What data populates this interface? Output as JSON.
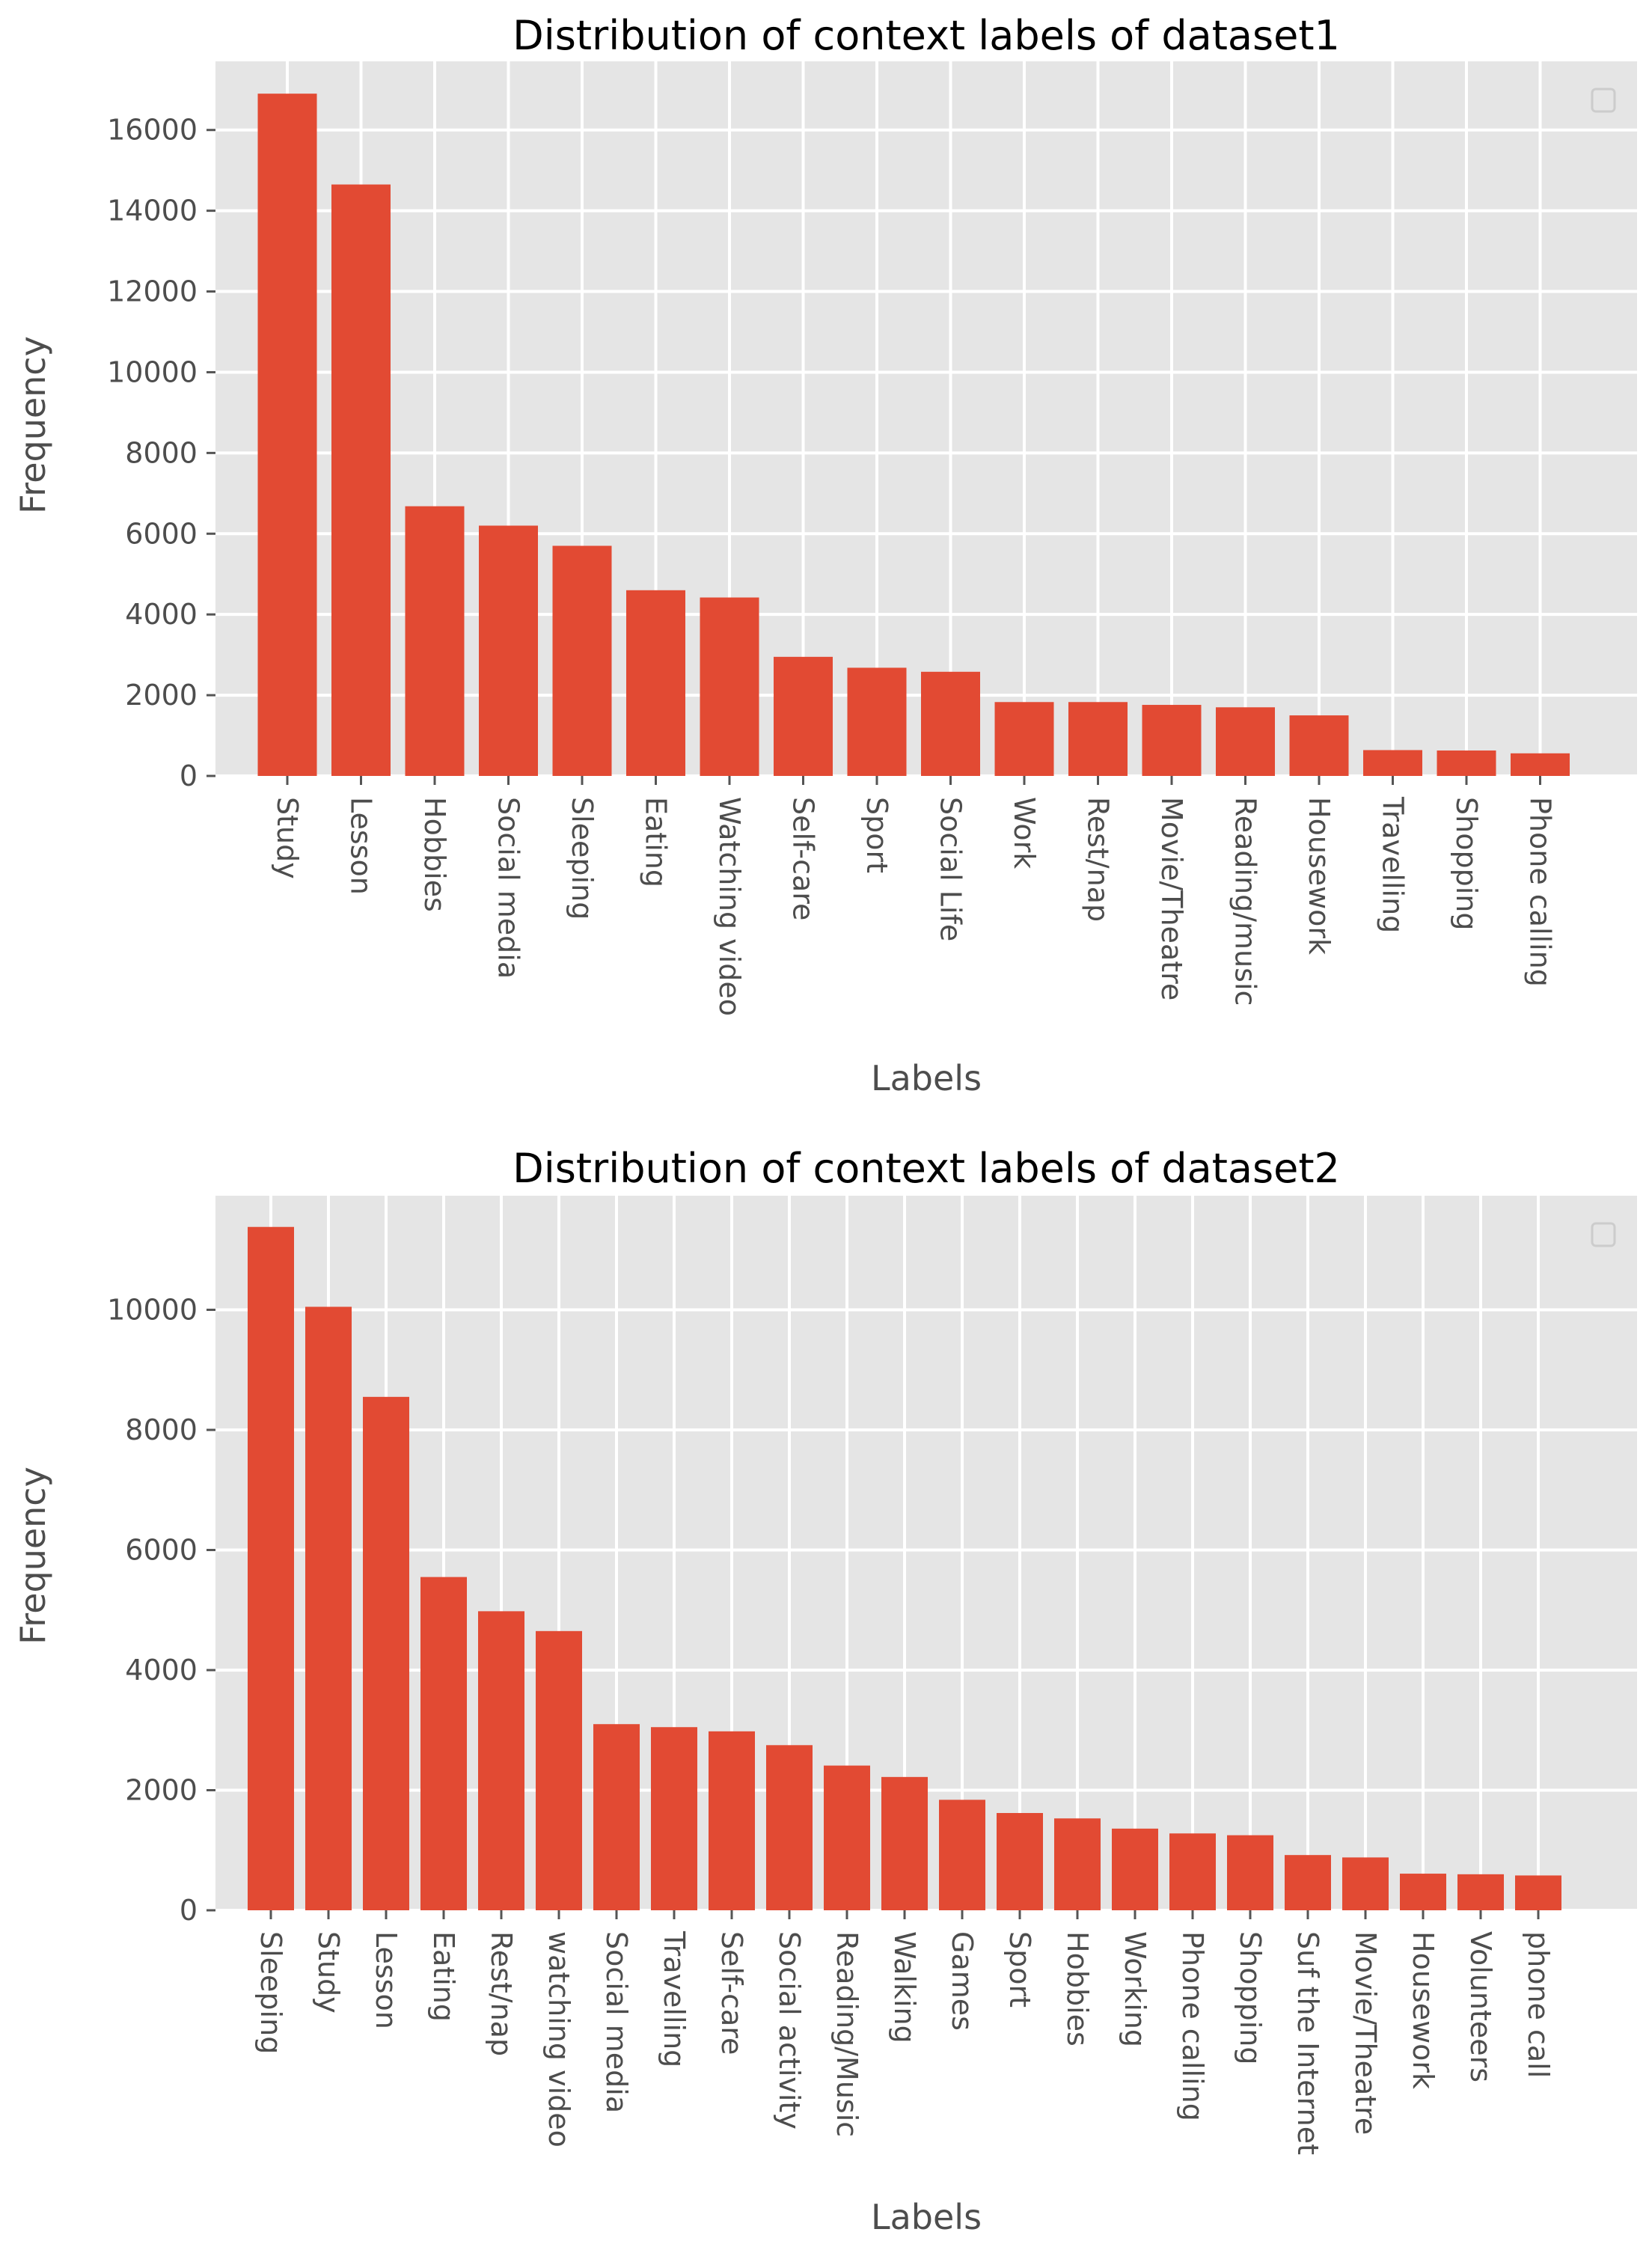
{
  "chart_data": [
    {
      "type": "bar",
      "title": "Distribution of context labels of dataset1",
      "xlabel": "Labels",
      "ylabel": "Frequency",
      "ylim": [
        0,
        17700
      ],
      "yticks": [
        0,
        2000,
        4000,
        6000,
        8000,
        10000,
        12000,
        14000,
        16000
      ],
      "grid": true,
      "legend": "top-right (empty)",
      "bar_color": "#E24A33",
      "background_color": "#E5E5E5",
      "categories": [
        "Study",
        "Lesson",
        "Hobbies",
        "Social media",
        "Sleeping",
        "Eating",
        "Watching video",
        "Self-care",
        "Sport",
        "Social Life",
        "Work",
        "Rest/nap",
        "Movie/Theatre",
        "Reading/music",
        "Housework",
        "Travelling",
        "Shopping",
        "Phone calling"
      ],
      "values": [
        16900,
        14650,
        6680,
        6200,
        5700,
        4600,
        4420,
        2950,
        2680,
        2580,
        1830,
        1830,
        1760,
        1700,
        1500,
        640,
        630,
        560
      ]
    },
    {
      "type": "bar",
      "title": "Distribution of context labels of dataset2",
      "xlabel": "Labels",
      "ylabel": "Frequency",
      "ylim": [
        0,
        11900
      ],
      "yticks": [
        0,
        2000,
        4000,
        6000,
        8000,
        10000
      ],
      "grid": true,
      "legend": "top-right (empty)",
      "bar_color": "#E24A33",
      "background_color": "#E5E5E5",
      "categories": [
        "Sleeping",
        "Study",
        "Lesson",
        "Eating",
        "Rest/nap",
        "watching video",
        "Social media",
        "Travelling",
        "Self-care",
        "Social activity",
        "Reading/Music",
        "Walking",
        "Games",
        "Sport",
        "Hobbies",
        "Working",
        "Phone calling",
        "Shopping",
        "Suf the Internet",
        "Movie/Theatre",
        "Housework",
        "Volunteers",
        "phone call"
      ],
      "values": [
        11380,
        10050,
        8550,
        5550,
        4980,
        4650,
        3100,
        3050,
        2980,
        2750,
        2410,
        2220,
        1840,
        1620,
        1530,
        1360,
        1280,
        1250,
        920,
        880,
        610,
        600,
        580
      ]
    }
  ]
}
